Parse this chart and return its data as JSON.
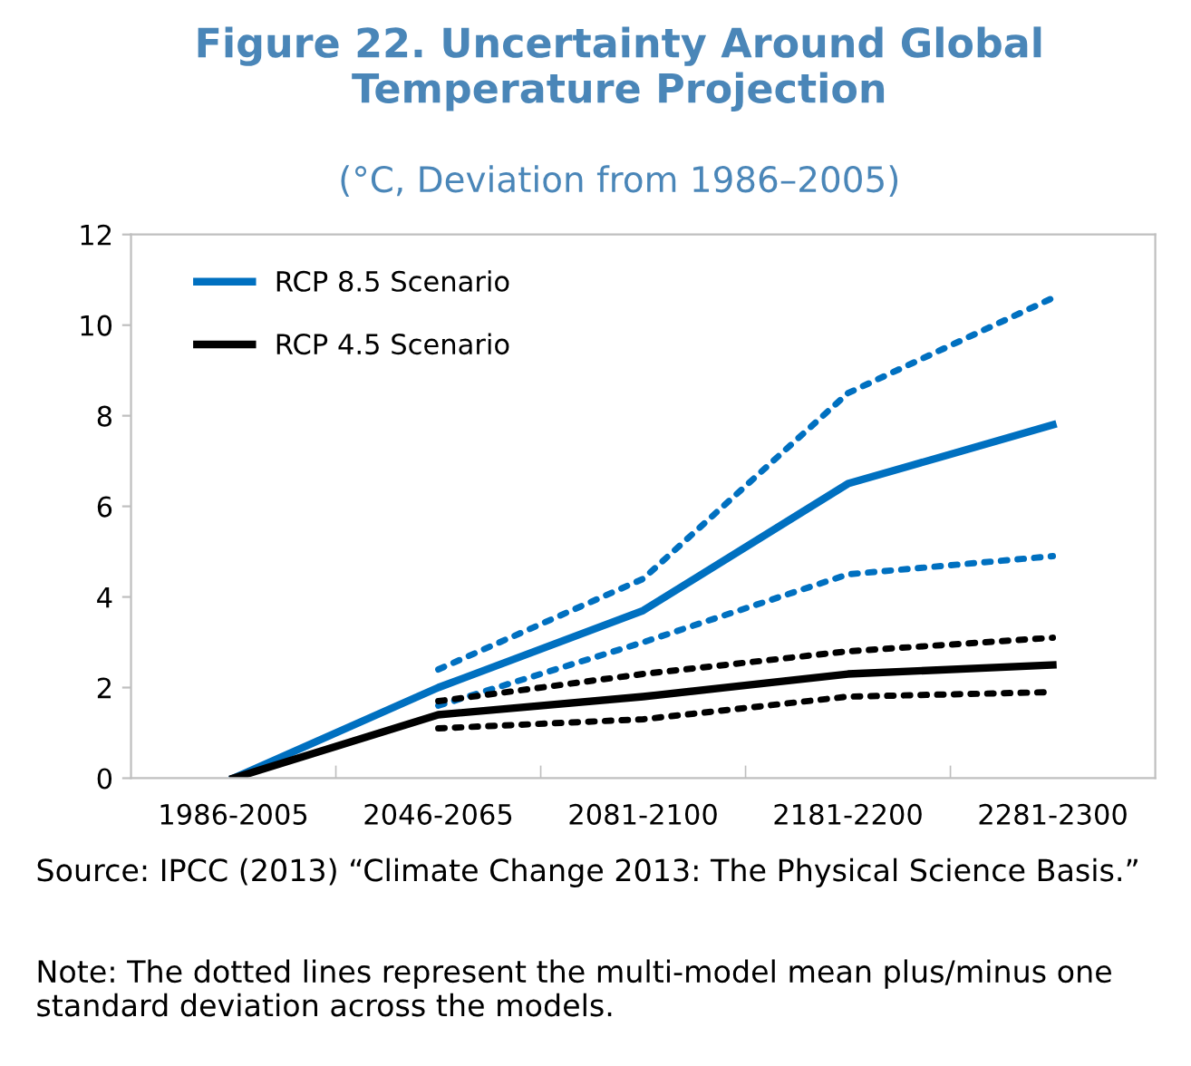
{
  "chart_data": {
    "type": "line",
    "title": "Figure 22. Uncertainty Around Global\nTemperature Projection",
    "subtitle": "(°C, Deviation from 1986–2005)",
    "categories": [
      "1986-2005",
      "2046-2065",
      "2081-2100",
      "2181-2200",
      "2281-2300"
    ],
    "series": [
      {
        "name": "RCP 8.5 Scenario",
        "color": "#0070c0",
        "values": [
          0,
          2.0,
          3.7,
          6.5,
          7.8
        ]
      },
      {
        "color": "#0070c0",
        "line_style": "dotted",
        "values": [
          null,
          2.4,
          4.4,
          8.5,
          10.6
        ]
      },
      {
        "color": "#0070c0",
        "line_style": "dotted",
        "values": [
          null,
          1.6,
          3.0,
          4.5,
          4.9
        ]
      },
      {
        "name": "RCP 4.5 Scenario",
        "color": "#000000",
        "values": [
          0,
          1.4,
          1.8,
          2.3,
          2.5
        ]
      },
      {
        "color": "#000000",
        "line_style": "dotted",
        "values": [
          null,
          1.7,
          2.3,
          2.8,
          3.1
        ]
      },
      {
        "color": "#000000",
        "line_style": "dotted",
        "values": [
          null,
          1.1,
          1.3,
          1.8,
          1.9
        ]
      }
    ],
    "ylim": [
      0,
      12
    ],
    "yticks": [
      0,
      2,
      4,
      6,
      8,
      10,
      12
    ],
    "grid": false,
    "legend": "top left",
    "annotations": [
      "Source: IPCC (2013) “Climate Change 2013: The Physical Science Basis.”",
      "Note: The dotted lines represent the multi-model mean plus/minus one standard deviation across the models."
    ]
  }
}
